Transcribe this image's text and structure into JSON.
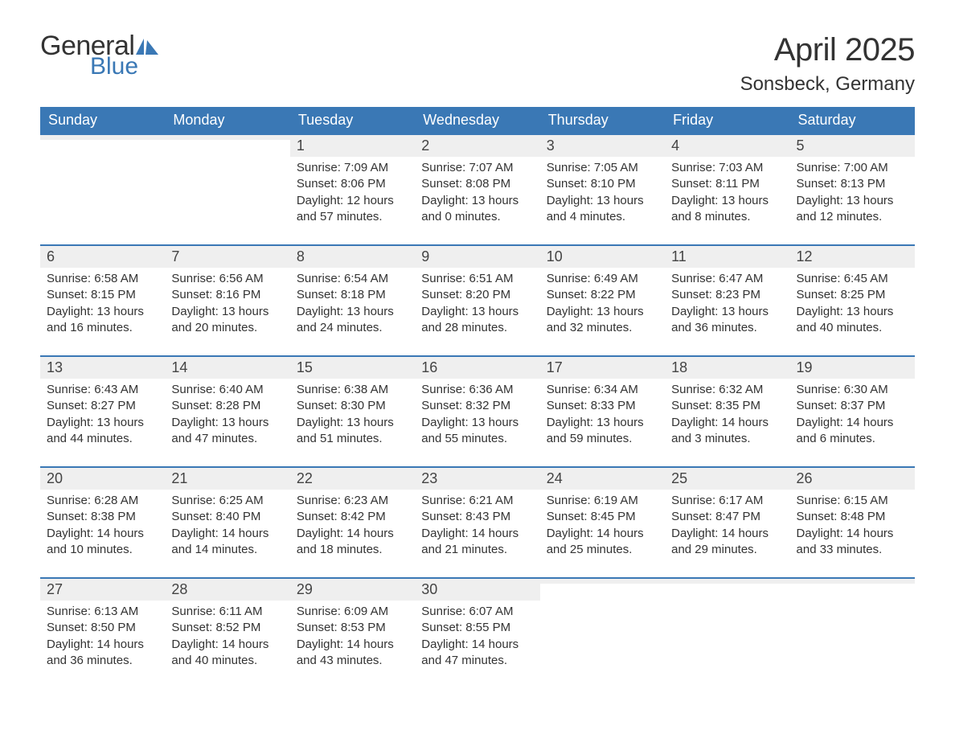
{
  "brand": {
    "word1": "General",
    "word2": "Blue",
    "logo_color": "#3a78b5",
    "text_color": "#333333"
  },
  "title": "April 2025",
  "location": "Sonsbeck, Germany",
  "colors": {
    "header_bg": "#3a78b5",
    "header_text": "#ffffff",
    "daynum_bg": "#efefef",
    "week_border": "#3a78b5",
    "body_text": "#333333",
    "page_bg": "#ffffff"
  },
  "typography": {
    "title_fontsize": 40,
    "location_fontsize": 24,
    "dow_fontsize": 18,
    "daynum_fontsize": 18,
    "body_fontsize": 15
  },
  "days_of_week": [
    "Sunday",
    "Monday",
    "Tuesday",
    "Wednesday",
    "Thursday",
    "Friday",
    "Saturday"
  ],
  "weeks": [
    [
      {
        "n": "",
        "sunrise": "",
        "sunset": "",
        "daylight1": "",
        "daylight2": ""
      },
      {
        "n": "",
        "sunrise": "",
        "sunset": "",
        "daylight1": "",
        "daylight2": ""
      },
      {
        "n": "1",
        "sunrise": "Sunrise: 7:09 AM",
        "sunset": "Sunset: 8:06 PM",
        "daylight1": "Daylight: 12 hours",
        "daylight2": "and 57 minutes."
      },
      {
        "n": "2",
        "sunrise": "Sunrise: 7:07 AM",
        "sunset": "Sunset: 8:08 PM",
        "daylight1": "Daylight: 13 hours",
        "daylight2": "and 0 minutes."
      },
      {
        "n": "3",
        "sunrise": "Sunrise: 7:05 AM",
        "sunset": "Sunset: 8:10 PM",
        "daylight1": "Daylight: 13 hours",
        "daylight2": "and 4 minutes."
      },
      {
        "n": "4",
        "sunrise": "Sunrise: 7:03 AM",
        "sunset": "Sunset: 8:11 PM",
        "daylight1": "Daylight: 13 hours",
        "daylight2": "and 8 minutes."
      },
      {
        "n": "5",
        "sunrise": "Sunrise: 7:00 AM",
        "sunset": "Sunset: 8:13 PM",
        "daylight1": "Daylight: 13 hours",
        "daylight2": "and 12 minutes."
      }
    ],
    [
      {
        "n": "6",
        "sunrise": "Sunrise: 6:58 AM",
        "sunset": "Sunset: 8:15 PM",
        "daylight1": "Daylight: 13 hours",
        "daylight2": "and 16 minutes."
      },
      {
        "n": "7",
        "sunrise": "Sunrise: 6:56 AM",
        "sunset": "Sunset: 8:16 PM",
        "daylight1": "Daylight: 13 hours",
        "daylight2": "and 20 minutes."
      },
      {
        "n": "8",
        "sunrise": "Sunrise: 6:54 AM",
        "sunset": "Sunset: 8:18 PM",
        "daylight1": "Daylight: 13 hours",
        "daylight2": "and 24 minutes."
      },
      {
        "n": "9",
        "sunrise": "Sunrise: 6:51 AM",
        "sunset": "Sunset: 8:20 PM",
        "daylight1": "Daylight: 13 hours",
        "daylight2": "and 28 minutes."
      },
      {
        "n": "10",
        "sunrise": "Sunrise: 6:49 AM",
        "sunset": "Sunset: 8:22 PM",
        "daylight1": "Daylight: 13 hours",
        "daylight2": "and 32 minutes."
      },
      {
        "n": "11",
        "sunrise": "Sunrise: 6:47 AM",
        "sunset": "Sunset: 8:23 PM",
        "daylight1": "Daylight: 13 hours",
        "daylight2": "and 36 minutes."
      },
      {
        "n": "12",
        "sunrise": "Sunrise: 6:45 AM",
        "sunset": "Sunset: 8:25 PM",
        "daylight1": "Daylight: 13 hours",
        "daylight2": "and 40 minutes."
      }
    ],
    [
      {
        "n": "13",
        "sunrise": "Sunrise: 6:43 AM",
        "sunset": "Sunset: 8:27 PM",
        "daylight1": "Daylight: 13 hours",
        "daylight2": "and 44 minutes."
      },
      {
        "n": "14",
        "sunrise": "Sunrise: 6:40 AM",
        "sunset": "Sunset: 8:28 PM",
        "daylight1": "Daylight: 13 hours",
        "daylight2": "and 47 minutes."
      },
      {
        "n": "15",
        "sunrise": "Sunrise: 6:38 AM",
        "sunset": "Sunset: 8:30 PM",
        "daylight1": "Daylight: 13 hours",
        "daylight2": "and 51 minutes."
      },
      {
        "n": "16",
        "sunrise": "Sunrise: 6:36 AM",
        "sunset": "Sunset: 8:32 PM",
        "daylight1": "Daylight: 13 hours",
        "daylight2": "and 55 minutes."
      },
      {
        "n": "17",
        "sunrise": "Sunrise: 6:34 AM",
        "sunset": "Sunset: 8:33 PM",
        "daylight1": "Daylight: 13 hours",
        "daylight2": "and 59 minutes."
      },
      {
        "n": "18",
        "sunrise": "Sunrise: 6:32 AM",
        "sunset": "Sunset: 8:35 PM",
        "daylight1": "Daylight: 14 hours",
        "daylight2": "and 3 minutes."
      },
      {
        "n": "19",
        "sunrise": "Sunrise: 6:30 AM",
        "sunset": "Sunset: 8:37 PM",
        "daylight1": "Daylight: 14 hours",
        "daylight2": "and 6 minutes."
      }
    ],
    [
      {
        "n": "20",
        "sunrise": "Sunrise: 6:28 AM",
        "sunset": "Sunset: 8:38 PM",
        "daylight1": "Daylight: 14 hours",
        "daylight2": "and 10 minutes."
      },
      {
        "n": "21",
        "sunrise": "Sunrise: 6:25 AM",
        "sunset": "Sunset: 8:40 PM",
        "daylight1": "Daylight: 14 hours",
        "daylight2": "and 14 minutes."
      },
      {
        "n": "22",
        "sunrise": "Sunrise: 6:23 AM",
        "sunset": "Sunset: 8:42 PM",
        "daylight1": "Daylight: 14 hours",
        "daylight2": "and 18 minutes."
      },
      {
        "n": "23",
        "sunrise": "Sunrise: 6:21 AM",
        "sunset": "Sunset: 8:43 PM",
        "daylight1": "Daylight: 14 hours",
        "daylight2": "and 21 minutes."
      },
      {
        "n": "24",
        "sunrise": "Sunrise: 6:19 AM",
        "sunset": "Sunset: 8:45 PM",
        "daylight1": "Daylight: 14 hours",
        "daylight2": "and 25 minutes."
      },
      {
        "n": "25",
        "sunrise": "Sunrise: 6:17 AM",
        "sunset": "Sunset: 8:47 PM",
        "daylight1": "Daylight: 14 hours",
        "daylight2": "and 29 minutes."
      },
      {
        "n": "26",
        "sunrise": "Sunrise: 6:15 AM",
        "sunset": "Sunset: 8:48 PM",
        "daylight1": "Daylight: 14 hours",
        "daylight2": "and 33 minutes."
      }
    ],
    [
      {
        "n": "27",
        "sunrise": "Sunrise: 6:13 AM",
        "sunset": "Sunset: 8:50 PM",
        "daylight1": "Daylight: 14 hours",
        "daylight2": "and 36 minutes."
      },
      {
        "n": "28",
        "sunrise": "Sunrise: 6:11 AM",
        "sunset": "Sunset: 8:52 PM",
        "daylight1": "Daylight: 14 hours",
        "daylight2": "and 40 minutes."
      },
      {
        "n": "29",
        "sunrise": "Sunrise: 6:09 AM",
        "sunset": "Sunset: 8:53 PM",
        "daylight1": "Daylight: 14 hours",
        "daylight2": "and 43 minutes."
      },
      {
        "n": "30",
        "sunrise": "Sunrise: 6:07 AM",
        "sunset": "Sunset: 8:55 PM",
        "daylight1": "Daylight: 14 hours",
        "daylight2": "and 47 minutes."
      },
      {
        "n": "",
        "sunrise": "",
        "sunset": "",
        "daylight1": "",
        "daylight2": ""
      },
      {
        "n": "",
        "sunrise": "",
        "sunset": "",
        "daylight1": "",
        "daylight2": ""
      },
      {
        "n": "",
        "sunrise": "",
        "sunset": "",
        "daylight1": "",
        "daylight2": ""
      }
    ]
  ]
}
